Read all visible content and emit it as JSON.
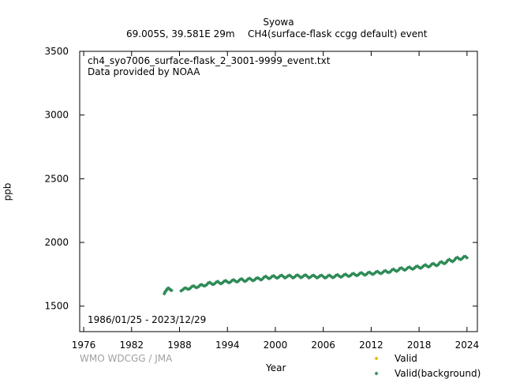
{
  "header": {
    "station": "Syowa",
    "location": "69.005S, 39.581E 29m",
    "dataset": "CH4(surface-flask ccgg default) event"
  },
  "plot_info": {
    "filename": "ch4_syo7006_surface-flask_2_3001-9999_event.txt",
    "provider": "Data provided by NOAA",
    "date_range": "1986/01/25 - 2023/12/29"
  },
  "watermark": "WMO WDCGG / JMA",
  "colors": {
    "valid": "#e6b800",
    "background": "#2e8b57",
    "axis": "#000000"
  },
  "chart_data": {
    "type": "scatter",
    "xlabel": "Year",
    "ylabel": "ppb",
    "xlim": [
      1975.5,
      2025.3
    ],
    "ylim": [
      1300,
      3500
    ],
    "xticks": [
      1976,
      1982,
      1988,
      1994,
      2000,
      2006,
      2012,
      2018,
      2024
    ],
    "yticks": [
      1500,
      2000,
      2500,
      3000,
      3500
    ],
    "grid": false,
    "legend": "bottom-right",
    "series": [
      {
        "name": "Valid",
        "marker": "diamond",
        "color": "#e6b800",
        "points": []
      },
      {
        "name": "Valid(background)",
        "marker": "diamond",
        "color": "#2e8b57",
        "points": [
          [
            1986.1,
            1598
          ],
          [
            1986.2,
            1612
          ],
          [
            1986.3,
            1620
          ],
          [
            1986.4,
            1630
          ],
          [
            1986.5,
            1638
          ],
          [
            1986.6,
            1640
          ],
          [
            1986.7,
            1638
          ],
          [
            1986.8,
            1632
          ],
          [
            1986.9,
            1626
          ],
          [
            1987.0,
            1624
          ],
          [
            1988.2,
            1620
          ],
          [
            1988.4,
            1628
          ],
          [
            1988.6,
            1640
          ],
          [
            1988.8,
            1642
          ],
          [
            1989.0,
            1634
          ],
          [
            1989.2,
            1634
          ],
          [
            1989.4,
            1644
          ],
          [
            1989.6,
            1656
          ],
          [
            1989.8,
            1658
          ],
          [
            1990.0,
            1648
          ],
          [
            1990.2,
            1646
          ],
          [
            1990.4,
            1654
          ],
          [
            1990.6,
            1666
          ],
          [
            1990.8,
            1668
          ],
          [
            1991.0,
            1660
          ],
          [
            1991.2,
            1660
          ],
          [
            1991.4,
            1668
          ],
          [
            1991.6,
            1682
          ],
          [
            1991.8,
            1686
          ],
          [
            1992.0,
            1676
          ],
          [
            1992.2,
            1670
          ],
          [
            1992.4,
            1676
          ],
          [
            1992.6,
            1688
          ],
          [
            1992.8,
            1694
          ],
          [
            1993.0,
            1682
          ],
          [
            1993.2,
            1676
          ],
          [
            1993.4,
            1684
          ],
          [
            1993.6,
            1696
          ],
          [
            1993.8,
            1700
          ],
          [
            1994.0,
            1690
          ],
          [
            1994.2,
            1684
          ],
          [
            1994.4,
            1690
          ],
          [
            1994.6,
            1702
          ],
          [
            1994.8,
            1706
          ],
          [
            1995.0,
            1696
          ],
          [
            1995.2,
            1690
          ],
          [
            1995.4,
            1698
          ],
          [
            1995.6,
            1710
          ],
          [
            1995.8,
            1714
          ],
          [
            1996.0,
            1702
          ],
          [
            1996.2,
            1694
          ],
          [
            1996.4,
            1702
          ],
          [
            1996.6,
            1714
          ],
          [
            1996.8,
            1718
          ],
          [
            1997.0,
            1708
          ],
          [
            1997.2,
            1700
          ],
          [
            1997.4,
            1706
          ],
          [
            1997.6,
            1718
          ],
          [
            1997.8,
            1722
          ],
          [
            1998.0,
            1714
          ],
          [
            1998.2,
            1706
          ],
          [
            1998.4,
            1714
          ],
          [
            1998.6,
            1728
          ],
          [
            1998.8,
            1734
          ],
          [
            1999.0,
            1724
          ],
          [
            1999.2,
            1716
          ],
          [
            1999.4,
            1722
          ],
          [
            1999.6,
            1734
          ],
          [
            1999.8,
            1738
          ],
          [
            2000.0,
            1728
          ],
          [
            2000.2,
            1720
          ],
          [
            2000.4,
            1726
          ],
          [
            2000.6,
            1738
          ],
          [
            2000.8,
            1742
          ],
          [
            2001.0,
            1732
          ],
          [
            2001.2,
            1722
          ],
          [
            2001.4,
            1728
          ],
          [
            2001.6,
            1738
          ],
          [
            2001.8,
            1742
          ],
          [
            2002.0,
            1732
          ],
          [
            2002.2,
            1722
          ],
          [
            2002.4,
            1728
          ],
          [
            2002.6,
            1740
          ],
          [
            2002.8,
            1744
          ],
          [
            2003.0,
            1734
          ],
          [
            2003.2,
            1724
          ],
          [
            2003.4,
            1730
          ],
          [
            2003.6,
            1740
          ],
          [
            2003.8,
            1744
          ],
          [
            2004.0,
            1734
          ],
          [
            2004.2,
            1722
          ],
          [
            2004.4,
            1728
          ],
          [
            2004.6,
            1738
          ],
          [
            2004.8,
            1742
          ],
          [
            2005.0,
            1732
          ],
          [
            2005.2,
            1722
          ],
          [
            2005.4,
            1728
          ],
          [
            2005.6,
            1738
          ],
          [
            2005.8,
            1742
          ],
          [
            2006.0,
            1732
          ],
          [
            2006.2,
            1722
          ],
          [
            2006.4,
            1726
          ],
          [
            2006.6,
            1738
          ],
          [
            2006.8,
            1742
          ],
          [
            2007.0,
            1732
          ],
          [
            2007.2,
            1724
          ],
          [
            2007.4,
            1730
          ],
          [
            2007.6,
            1742
          ],
          [
            2007.8,
            1746
          ],
          [
            2008.0,
            1736
          ],
          [
            2008.2,
            1728
          ],
          [
            2008.4,
            1734
          ],
          [
            2008.6,
            1746
          ],
          [
            2008.8,
            1750
          ],
          [
            2009.0,
            1740
          ],
          [
            2009.2,
            1734
          ],
          [
            2009.4,
            1740
          ],
          [
            2009.6,
            1752
          ],
          [
            2009.8,
            1756
          ],
          [
            2010.0,
            1746
          ],
          [
            2010.2,
            1740
          ],
          [
            2010.4,
            1746
          ],
          [
            2010.6,
            1758
          ],
          [
            2010.8,
            1762
          ],
          [
            2011.0,
            1752
          ],
          [
            2011.2,
            1744
          ],
          [
            2011.4,
            1750
          ],
          [
            2011.6,
            1762
          ],
          [
            2011.8,
            1766
          ],
          [
            2012.0,
            1756
          ],
          [
            2012.2,
            1750
          ],
          [
            2012.4,
            1756
          ],
          [
            2012.6,
            1768
          ],
          [
            2012.8,
            1772
          ],
          [
            2013.0,
            1762
          ],
          [
            2013.2,
            1756
          ],
          [
            2013.4,
            1762
          ],
          [
            2013.6,
            1774
          ],
          [
            2013.8,
            1778
          ],
          [
            2014.0,
            1768
          ],
          [
            2014.2,
            1764
          ],
          [
            2014.4,
            1770
          ],
          [
            2014.6,
            1784
          ],
          [
            2014.8,
            1790
          ],
          [
            2015.0,
            1780
          ],
          [
            2015.2,
            1774
          ],
          [
            2015.4,
            1782
          ],
          [
            2015.6,
            1796
          ],
          [
            2015.8,
            1800
          ],
          [
            2016.0,
            1790
          ],
          [
            2016.2,
            1782
          ],
          [
            2016.4,
            1790
          ],
          [
            2016.6,
            1802
          ],
          [
            2016.8,
            1806
          ],
          [
            2017.0,
            1796
          ],
          [
            2017.2,
            1790
          ],
          [
            2017.4,
            1798
          ],
          [
            2017.6,
            1810
          ],
          [
            2017.8,
            1814
          ],
          [
            2018.0,
            1804
          ],
          [
            2018.2,
            1798
          ],
          [
            2018.4,
            1806
          ],
          [
            2018.6,
            1818
          ],
          [
            2018.8,
            1824
          ],
          [
            2019.0,
            1814
          ],
          [
            2019.2,
            1808
          ],
          [
            2019.4,
            1816
          ],
          [
            2019.6,
            1830
          ],
          [
            2019.8,
            1834
          ],
          [
            2020.0,
            1824
          ],
          [
            2020.2,
            1818
          ],
          [
            2020.4,
            1826
          ],
          [
            2020.6,
            1842
          ],
          [
            2020.8,
            1848
          ],
          [
            2021.0,
            1838
          ],
          [
            2021.2,
            1834
          ],
          [
            2021.4,
            1844
          ],
          [
            2021.6,
            1860
          ],
          [
            2021.8,
            1866
          ],
          [
            2022.0,
            1856
          ],
          [
            2022.2,
            1850
          ],
          [
            2022.4,
            1860
          ],
          [
            2022.6,
            1876
          ],
          [
            2022.8,
            1882
          ],
          [
            2023.0,
            1872
          ],
          [
            2023.2,
            1866
          ],
          [
            2023.4,
            1874
          ],
          [
            2023.6,
            1888
          ],
          [
            2023.8,
            1890
          ],
          [
            2023.99,
            1880
          ]
        ]
      }
    ]
  }
}
